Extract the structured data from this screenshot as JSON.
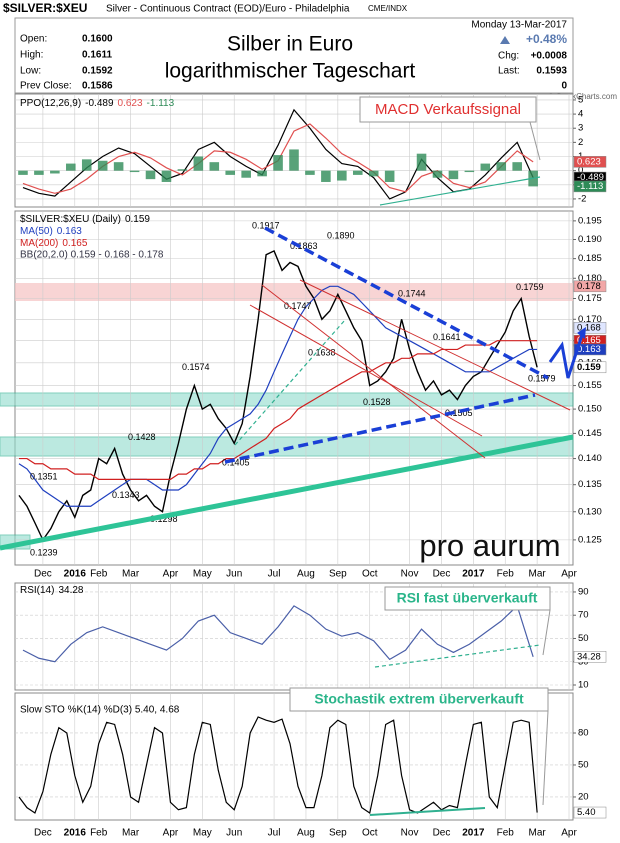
{
  "header": {
    "symbol": "$SILVER:$XEU",
    "description": "Silver - Continuous Contract (EOD)/Euro - Philadelphia",
    "exchange": "CME/INDX",
    "title": [
      "Silber in Euro",
      "logarithmischer Tageschart"
    ],
    "stats": [
      {
        "label": "Open:",
        "value": "0.1600"
      },
      {
        "label": "High:",
        "value": "0.1611"
      },
      {
        "label": "Low:",
        "value": "0.1592"
      },
      {
        "label": "Prev Close:",
        "value": "0.1586"
      }
    ],
    "date": "Monday  13-Mar-2017",
    "change_pct": "+0.48%",
    "stats_right": [
      {
        "label": "Chg:",
        "value": "+0.0008"
      },
      {
        "label": "Last:",
        "value": "0.1593"
      },
      {
        "value": "0"
      }
    ],
    "credit": "© StockCharts.com"
  },
  "chart_data": [
    {
      "type": "line",
      "label": "PPO(12,26,9)",
      "annotation": "MACD Verkaufssignal",
      "grid": true,
      "ylim": [
        -2.57,
        5.42
      ],
      "yticks": [
        5,
        4,
        3,
        2,
        1,
        0,
        -1,
        -2
      ],
      "series": [
        {
          "color": "#000000",
          "values": [
            -1.2,
            -1.6,
            -1.8,
            -0.8,
            0.2,
            1.0,
            1.6,
            1.2,
            0.3,
            -0.6,
            -0.2,
            1.5,
            2.0,
            1.0,
            0.3,
            -0.3,
            1.8,
            4.3,
            3.0,
            1.5,
            0.5,
            0.3,
            -0.5,
            -2.0,
            -1.5,
            0.8,
            -0.5,
            -1.5,
            -1.3,
            -0.3,
            0.9,
            2.0,
            -0.489,
            null,
            null
          ]
        },
        {
          "color": "#e05050",
          "values": [
            -0.9,
            -1.3,
            -1.6,
            -1.3,
            -0.6,
            0.3,
            1.0,
            1.3,
            0.9,
            0.2,
            -0.3,
            0.5,
            1.4,
            1.3,
            0.8,
            0.1,
            0.7,
            2.8,
            3.3,
            2.3,
            1.2,
            0.6,
            -0.1,
            -1.2,
            -1.5,
            -0.4,
            0.0,
            -0.9,
            -1.2,
            -0.8,
            0.3,
            1.4,
            0.623,
            null,
            null
          ]
        },
        {
          "type": "bar",
          "color": "#2e8b57",
          "values": [
            -0.3,
            -0.3,
            -0.2,
            0.5,
            0.8,
            0.7,
            0.6,
            -0.1,
            -0.6,
            -0.8,
            0.1,
            1.0,
            0.6,
            -0.3,
            -0.5,
            -0.4,
            1.1,
            1.5,
            -0.3,
            -0.8,
            -0.7,
            -0.3,
            -0.4,
            -0.8,
            0.0,
            1.2,
            -0.5,
            -0.6,
            -0.1,
            0.5,
            0.6,
            0.6,
            -1.113,
            null,
            null
          ]
        }
      ]
    },
    {
      "type": "line",
      "log_scale": true,
      "grid": true,
      "logo": "pro aurum",
      "categories": [
        null,
        null,
        null,
        "Dec",
        null,
        null,
        null,
        "2016",
        null,
        null,
        "Feb",
        null,
        null,
        null,
        "Mar",
        null,
        null,
        null,
        null,
        "Apr",
        null,
        null,
        null,
        "May",
        null,
        null,
        null,
        "Jun",
        null,
        null,
        null,
        null,
        "Jul",
        null,
        null,
        null,
        "Aug",
        null,
        null,
        null,
        "Sep",
        null,
        null,
        null,
        "Oct",
        null,
        null,
        null,
        null,
        "Nov",
        null,
        null,
        null,
        "Dec",
        null,
        null,
        null,
        "2017",
        null,
        null,
        null,
        "Feb",
        null,
        null,
        null,
        "Mar",
        null,
        null,
        null,
        "Apr"
      ],
      "ylim": [
        0.1207,
        0.1977
      ],
      "yticks": [
        0.195,
        {
          "value": 0.19,
          "label": "0.190"
        },
        0.185,
        {
          "value": 0.18,
          "label": "0.180"
        },
        0.175,
        {
          "value": 0.17,
          "label": "0.170"
        },
        0.165,
        {
          "value": 0.16,
          "label": "0.160"
        },
        0.155,
        {
          "value": 0.15,
          "label": "0.150"
        },
        0.145,
        {
          "value": 0.14,
          "label": "0.140"
        },
        0.135,
        {
          "value": 0.13,
          "label": "0.130"
        },
        0.125
      ],
      "series": [
        {
          "name": "$SILVER:$XEU (Daily)",
          "color": "#000000",
          "values": [
            0.133,
            0.131,
            0.128,
            0.125,
            0.127,
            0.13,
            0.132,
            0.129,
            0.133,
            0.134,
            0.14,
            0.139,
            0.142,
            0.137,
            0.134,
            0.132,
            0.133,
            0.131,
            0.13,
            0.137,
            0.143,
            0.15,
            0.155,
            0.15,
            0.151,
            0.148,
            0.146,
            0.143,
            0.147,
            0.157,
            0.17,
            0.186,
            0.187,
            0.182,
            0.184,
            0.183,
            0.178,
            0.175,
            0.17,
            0.172,
            0.176,
            0.172,
            0.168,
            0.165,
            0.155,
            0.156,
            0.158,
            0.161,
            0.17,
            0.163,
            0.158,
            0.154,
            0.156,
            0.153,
            0.154,
            0.152,
            0.155,
            0.157,
            0.158,
            0.161,
            0.164,
            0.167,
            0.172,
            0.175,
            0.166,
            0.159,
            null,
            null,
            null,
            null
          ]
        },
        {
          "name": "MA(50)",
          "color": "#1f3fbf",
          "values": [
            0.139,
            0.138,
            0.136,
            0.134,
            0.133,
            0.132,
            0.131,
            0.131,
            0.131,
            0.131,
            0.132,
            0.133,
            0.134,
            0.135,
            0.136,
            0.136,
            0.136,
            0.135,
            0.134,
            0.134,
            0.134,
            0.135,
            0.137,
            0.139,
            0.141,
            0.144,
            0.146,
            0.147,
            0.148,
            0.149,
            0.151,
            0.154,
            0.158,
            0.162,
            0.166,
            0.17,
            0.173,
            0.175,
            0.177,
            0.178,
            0.178,
            0.177,
            0.176,
            0.174,
            0.172,
            0.17,
            0.168,
            0.167,
            0.166,
            0.165,
            0.164,
            0.163,
            0.162,
            0.161,
            0.16,
            0.159,
            0.158,
            0.158,
            0.158,
            0.158,
            0.159,
            0.16,
            0.161,
            0.162,
            0.163,
            0.163,
            null,
            null,
            null,
            null
          ]
        },
        {
          "name": "MA(200)",
          "color": "#d02020",
          "values": [
            0.14,
            0.14,
            0.139,
            0.139,
            0.138,
            0.138,
            0.138,
            0.137,
            0.137,
            0.137,
            0.136,
            0.136,
            0.136,
            0.136,
            0.136,
            0.136,
            0.136,
            0.136,
            0.136,
            0.136,
            0.137,
            0.137,
            0.138,
            0.138,
            0.139,
            0.139,
            0.14,
            0.14,
            0.141,
            0.142,
            0.143,
            0.144,
            0.146,
            0.147,
            0.148,
            0.15,
            0.151,
            0.152,
            0.153,
            0.154,
            0.155,
            0.156,
            0.157,
            0.158,
            0.158,
            0.159,
            0.16,
            0.16,
            0.161,
            0.161,
            0.162,
            0.162,
            0.162,
            0.163,
            0.163,
            0.163,
            0.164,
            0.164,
            0.164,
            0.164,
            0.165,
            0.165,
            0.165,
            0.165,
            0.165,
            0.165,
            null,
            null,
            null,
            null
          ]
        }
      ],
      "bands_label": "BB(20,2.0) 0.159 - 0.168 - 0.178",
      "value_tags": [
        {
          "value": 0.178,
          "color": "#f2a7a7"
        },
        {
          "value": 0.168,
          "color": "#dfe6ff"
        },
        {
          "value": 0.165,
          "color": "#d02020"
        },
        {
          "value": 0.163,
          "color": "#1f3fbf"
        },
        {
          "value": 0.159,
          "color": "#ffffff"
        }
      ],
      "annotations": {
        "values": [
          0.1917,
          0.1863,
          0.189,
          0.1747,
          0.1744,
          0.1638,
          0.1641,
          0.1528,
          0.1505,
          0.1579,
          0.1759,
          0.1574,
          0.1428,
          0.1351,
          0.1343,
          0.1298,
          0.1239,
          0.1405
        ],
        "value_labels": [
          "0.1917",
          "0.1863",
          "0.1890",
          "0.1747",
          "0.1744",
          "0.1638",
          "0.1641",
          "0.1528",
          "0.1505",
          "0.1579",
          "0.1759",
          "0.1574",
          "0.1428",
          "0.1351",
          "0.1343",
          "0.1298",
          "0.1239",
          "0.1405"
        ]
      }
    },
    {
      "type": "line",
      "label": "RSI(14)",
      "annotation": "RSI fast überverkauft",
      "grid": true,
      "ylim": [
        5.7,
        97.7
      ],
      "yticks": [
        90,
        70,
        50,
        30,
        10
      ],
      "series": [
        {
          "color": "#4a5fa8",
          "values": [
            40,
            33,
            30,
            45,
            55,
            60,
            55,
            50,
            45,
            40,
            50,
            65,
            70,
            55,
            50,
            45,
            60,
            78,
            70,
            58,
            52,
            55,
            48,
            32,
            40,
            58,
            45,
            38,
            45,
            55,
            65,
            78,
            34.28,
            null,
            null
          ]
        }
      ]
    },
    {
      "type": "line",
      "label": "Slow STO %K(14) %D(3) 5.40, 4.68",
      "annotation": "Stochastik extrem überverkauft",
      "grid": true,
      "ylim": [
        -1.6,
        117.5
      ],
      "yticks": [
        80,
        50,
        20
      ],
      "series": [
        {
          "color": "#000000",
          "values": [
            20,
            10,
            5,
            25,
            60,
            85,
            80,
            40,
            15,
            30,
            70,
            90,
            88,
            60,
            20,
            15,
            50,
            85,
            80,
            15,
            8,
            10,
            60,
            90,
            88,
            45,
            15,
            8,
            30,
            80,
            95,
            92,
            90,
            93,
            70,
            30,
            10,
            10,
            40,
            85,
            92,
            88,
            30,
            10,
            5,
            40,
            88,
            92,
            40,
            8,
            5,
            10,
            15,
            8,
            12,
            10,
            50,
            88,
            90,
            20,
            10,
            50,
            90,
            92,
            90,
            5.4,
            null,
            null,
            null,
            null
          ]
        }
      ],
      "tag": {
        "value": 5.4,
        "label": "5.40"
      }
    }
  ]
}
